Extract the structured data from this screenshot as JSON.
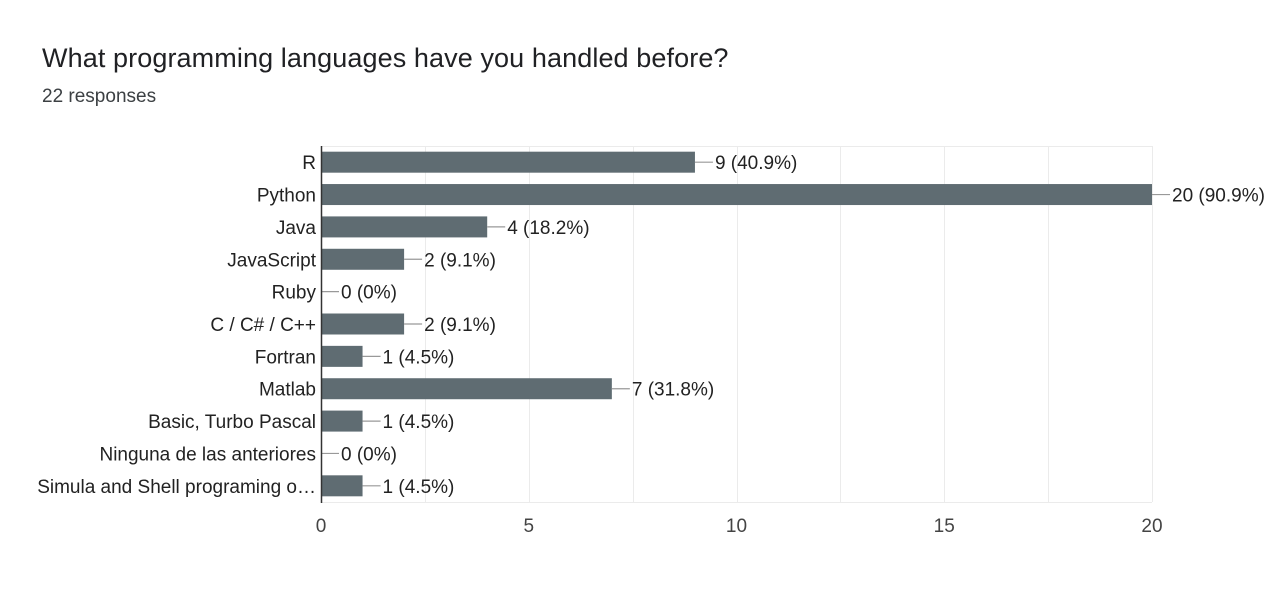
{
  "question": {
    "title": "What programming languages have you handled before?",
    "responses": "22 responses"
  },
  "colors": {
    "bar": "#5f6c72",
    "grid": "#ebebeb",
    "axis": "#333333"
  },
  "chart_data": {
    "type": "bar",
    "orientation": "horizontal",
    "categories": [
      "R",
      "Python",
      "Java",
      "JavaScript",
      "Ruby",
      "C / C# / C++",
      "Fortran",
      "Matlab",
      "Basic, Turbo Pascal",
      "Ninguna de las anteriores",
      "Simula and Shell programing o…"
    ],
    "values": [
      9,
      20,
      4,
      2,
      0,
      2,
      1,
      7,
      1,
      0,
      1
    ],
    "data_labels": [
      "9 (40.9%)",
      "20 (90.9%)",
      "4 (18.2%)",
      "2 (9.1%)",
      "0 (0%)",
      "2 (9.1%)",
      "1 (4.5%)",
      "7 (31.8%)",
      "1 (4.5%)",
      "0 (0%)",
      "1 (4.5%)"
    ],
    "xlim": [
      0,
      20
    ],
    "xticks": [
      0,
      5,
      10,
      15,
      20
    ],
    "grid": true
  }
}
